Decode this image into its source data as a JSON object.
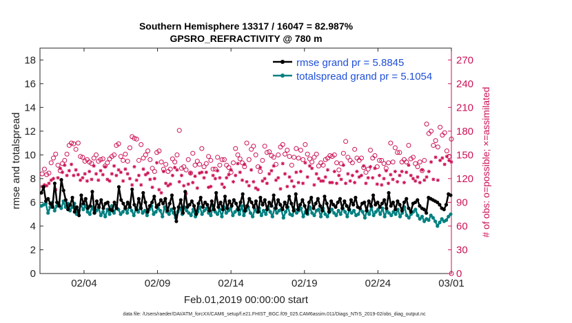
{
  "chart_data": {
    "type": "line",
    "title": "Southern Hemisphere 13317 / 16047 = 82.987%",
    "subtitle": "GPSRO_REFRACTIVITY @ 780 m",
    "xlabel": "Feb.01,2019 00:00:00 start",
    "ylabel": "rmse and totalspread",
    "ylabel_right": "# of obs: o=possible; ×=assimilated",
    "footnote": "data file: /Users/raeder/DAI/ATM_forcXX/CAM6_setup/f.e21.FHIST_BGC.f09_025.CAM6assim.011/Diags_NTrS_2019-02/obs_diag_output.nc",
    "x_range_days": [
      0,
      28
    ],
    "x_tick_days": [
      3,
      8,
      13,
      18,
      23,
      28
    ],
    "x_tick_labels": [
      "02/04",
      "02/09",
      "02/14",
      "02/19",
      "02/24",
      "03/01"
    ],
    "ylim": [
      0,
      19
    ],
    "y_ticks": [
      0,
      2,
      4,
      6,
      8,
      10,
      12,
      14,
      16,
      18
    ],
    "y2lim": [
      0,
      285
    ],
    "y2_ticks": [
      0,
      30,
      60,
      90,
      120,
      150,
      180,
      210,
      240,
      270
    ],
    "grid": false,
    "legend_position": "top-right",
    "colors": {
      "rmse": "#000000",
      "totalspread": "#008080",
      "obs": "#cc1155",
      "legend_text": "#1f4fd9"
    },
    "series": [
      {
        "name": "rmse grand pr = 5.8845",
        "axis": "left",
        "values": [
          6.8,
          7.3,
          6.1,
          6.3,
          5.9,
          5.6,
          7.6,
          6.0,
          5.7,
          7.9,
          7.0,
          6.2,
          5.4,
          5.8,
          6.4,
          5.2,
          5.6,
          4.9,
          6.6,
          5.9,
          6.3,
          5.5,
          5.7,
          6.9,
          5.1,
          6.1,
          5.6,
          6.2,
          5.5,
          5.9,
          6.0,
          5.4,
          5.3,
          6.0,
          5.5,
          7.3,
          6.2,
          5.9,
          5.5,
          6.0,
          5.6,
          7.1,
          5.8,
          5.4,
          6.3,
          5.5,
          6.8,
          6.0,
          5.2,
          5.7,
          6.0,
          6.5,
          5.6,
          5.8,
          6.2,
          5.9,
          6.3,
          5.3,
          5.9,
          6.6,
          5.5,
          4.4,
          5.6,
          6.2,
          5.1,
          6.9,
          5.6,
          5.8,
          6.1,
          5.7,
          5.0,
          5.9,
          6.4,
          5.6,
          6.0,
          5.8,
          5.3,
          6.1,
          5.4,
          6.8,
          5.6,
          6.0,
          5.4,
          6.5,
          5.5,
          6.1,
          5.7,
          6.2,
          5.9,
          5.4,
          6.0,
          6.7,
          5.3,
          5.7,
          6.3,
          6.0,
          5.6,
          6.1,
          5.2,
          6.4,
          5.8,
          6.2,
          5.4,
          6.0,
          5.7,
          6.6,
          5.5,
          6.2,
          5.8,
          5.4,
          6.0,
          5.6,
          6.5,
          5.9,
          5.3,
          6.7,
          5.4,
          5.8,
          6.2,
          5.7,
          5.1,
          6.0,
          6.4,
          5.5,
          5.9,
          6.3,
          5.7,
          5.3,
          6.5,
          5.9,
          5.2,
          6.1,
          5.8,
          5.6,
          6.0,
          6.3,
          5.5,
          6.1,
          5.7,
          5.4,
          6.2,
          5.8,
          6.4,
          5.6,
          5.5,
          5.9,
          6.0,
          5.3,
          6.1,
          5.7,
          6.6,
          5.8,
          6.0,
          5.6,
          5.9,
          6.2,
          5.5,
          6.8,
          5.7,
          6.0,
          5.4,
          6.1,
          5.8,
          5.3,
          6.0,
          6.3,
          5.5,
          5.2,
          5.9,
          6.0,
          6.2,
          5.7,
          5.5,
          5.4,
          5.1,
          6.4,
          6.3,
          6.2,
          6.1,
          6.0,
          5.8,
          5.5,
          5.4,
          5.8,
          6.7,
          6.6
        ],
        "step_days": 0.25,
        "x_start": 0.125
      },
      {
        "name": "totalspread grand pr = 5.1054",
        "axis": "left",
        "values": [
          5.7,
          5.8,
          5.9,
          5.1,
          5.6,
          6.0,
          5.3,
          5.7,
          5.8,
          5.5,
          6.1,
          5.6,
          5.9,
          5.3,
          5.6,
          5.9,
          5.0,
          5.3,
          5.8,
          5.4,
          5.7,
          5.2,
          5.0,
          5.6,
          5.1,
          5.3,
          5.5,
          4.9,
          5.2,
          4.8,
          5.4,
          5.0,
          5.7,
          5.1,
          5.6,
          5.4,
          5.0,
          5.2,
          5.5,
          5.1,
          5.8,
          5.3,
          4.9,
          5.5,
          5.2,
          5.6,
          5.1,
          5.3,
          4.9,
          5.4,
          5.7,
          5.0,
          5.2,
          5.5,
          5.3,
          4.8,
          5.6,
          5.2,
          5.0,
          5.4,
          5.1,
          4.7,
          5.2,
          5.5,
          5.0,
          5.6,
          5.3,
          5.1,
          4.9,
          5.4,
          4.8,
          5.2,
          5.6,
          5.0,
          5.3,
          5.5,
          5.1,
          4.9,
          5.7,
          5.2,
          5.0,
          5.4,
          4.8,
          5.6,
          5.1,
          5.3,
          5.5,
          4.9,
          5.2,
          5.4,
          5.0,
          5.7,
          4.9,
          5.3,
          5.6,
          5.1,
          4.8,
          5.4,
          5.2,
          5.5,
          4.9,
          5.3,
          5.0,
          5.6,
          5.2,
          4.8,
          5.5,
          5.1,
          5.3,
          5.4,
          4.7,
          5.2,
          5.6,
          5.0,
          4.9,
          5.4,
          5.1,
          5.3,
          5.5,
          4.8,
          5.2,
          5.0,
          5.6,
          5.1,
          4.9,
          5.3,
          5.4,
          4.8,
          5.5,
          5.0,
          4.8,
          5.2,
          5.4,
          5.1,
          4.9,
          5.3,
          5.0,
          5.5,
          5.2,
          4.8,
          5.4,
          5.1,
          5.3,
          4.9,
          5.0,
          5.4,
          5.2,
          4.7,
          5.3,
          5.0,
          5.6,
          4.9,
          5.2,
          5.4,
          5.0,
          5.5,
          4.8,
          5.3,
          5.1,
          4.9,
          5.2,
          5.0,
          5.4,
          4.8,
          5.1,
          5.6,
          4.9,
          4.7,
          5.0,
          5.2,
          5.4,
          4.9,
          4.6,
          4.8,
          4.4,
          4.6,
          4.5,
          4.9,
          4.7,
          4.4,
          4.0,
          4.3,
          4.6,
          4.4,
          4.5,
          4.8,
          5.0
        ],
        "step_days": 0.25,
        "x_start": 0.125
      },
      {
        "name": "# of obs possible",
        "axis": "right",
        "marker": "o",
        "values": [
          126,
          132,
          125,
          127,
          140,
          146,
          151,
          137,
          130,
          139,
          143,
          151,
          162,
          165,
          164,
          157,
          165,
          148,
          147,
          142,
          144,
          141,
          139,
          146,
          150,
          142,
          144,
          145,
          136,
          140,
          145,
          148,
          150,
          162,
          164,
          148,
          143,
          151,
          142,
          159,
          173,
          171,
          170,
          143,
          163,
          146,
          150,
          155,
          144,
          133,
          129,
          153,
          155,
          141,
          132,
          138,
          129,
          132,
          145,
          141,
          150,
          181,
          133,
          135,
          131,
          144,
          127,
          152,
          137,
          142,
          138,
          158,
          135,
          139,
          148,
          143,
          132,
          132,
          147,
          137,
          144,
          144,
          137,
          134,
          128,
          140,
          158,
          150,
          145,
          140,
          135,
          165,
          144,
          157,
          161,
          150,
          135,
          129,
          143,
          161,
          153,
          154,
          149,
          147,
          138,
          150,
          160,
          163,
          151,
          156,
          148,
          137,
          147,
          158,
          146,
          156,
          144,
          163,
          151,
          145,
          141,
          147,
          151,
          136,
          140,
          137,
          144,
          146,
          149,
          148,
          150,
          140,
          131,
          139,
          152,
          167,
          147,
          143,
          140,
          157,
          146,
          143,
          146,
          134,
          128,
          132,
          156,
          146,
          149,
          135,
          143,
          143,
          139,
          133,
          140,
          165,
          141,
          159,
          153,
          153,
          141,
          144,
          141,
          162,
          145,
          147,
          139,
          135,
          141,
          130,
          143,
          189,
          177,
          180,
          162,
          168,
          160,
          185,
          175,
          178,
          155,
          148,
          170
        ]
      },
      {
        "name": "# of obs assimilated",
        "axis": "right",
        "marker": "*",
        "values": [
          110,
          112,
          111,
          114,
          118,
          120,
          106,
          121,
          133,
          128,
          137,
          124,
          130,
          138,
          124,
          131,
          125,
          118,
          121,
          126,
          117,
          129,
          119,
          136,
          126,
          118,
          130,
          125,
          135,
          119,
          117,
          126,
          136,
          124,
          131,
          128,
          117,
          132,
          126,
          120,
          112,
          135,
          118,
          124,
          112,
          132,
          125,
          127,
          119,
          109,
          120,
          140,
          106,
          102,
          129,
          114,
          111,
          113,
          124,
          134,
          131,
          116,
          124,
          111,
          101,
          113,
          127,
          115,
          123,
          108,
          127,
          128,
          121,
          128,
          109,
          110,
          124,
          120,
          130,
          121,
          113,
          109,
          121,
          125,
          131,
          116,
          124,
          139,
          128,
          118,
          138,
          116,
          111,
          131,
          116,
          108,
          106,
          134,
          117,
          120,
          114,
          126,
          130,
          136,
          118,
          121,
          107,
          139,
          126,
          110,
          122,
          117,
          110,
          128,
          115,
          129,
          114,
          140,
          122,
          136,
          133,
          112,
          126,
          120,
          117,
          117,
          122,
          131,
          115,
          115,
          129,
          114,
          124,
          119,
          137,
          114,
          126,
          117,
          124,
          115,
          129,
          122,
          124,
          136,
          114,
          121,
          135,
          121,
          133,
          113,
          124,
          112,
          120,
          130,
          114,
          125,
          119,
          129,
          116,
          124,
          129,
          115,
          128,
          137,
          124,
          120,
          117,
          122,
          115,
          131,
          118,
          122,
          129,
          141,
          119,
          147,
          118,
          143,
          146,
          138,
          148,
          143,
          141
        ]
      }
    ]
  }
}
